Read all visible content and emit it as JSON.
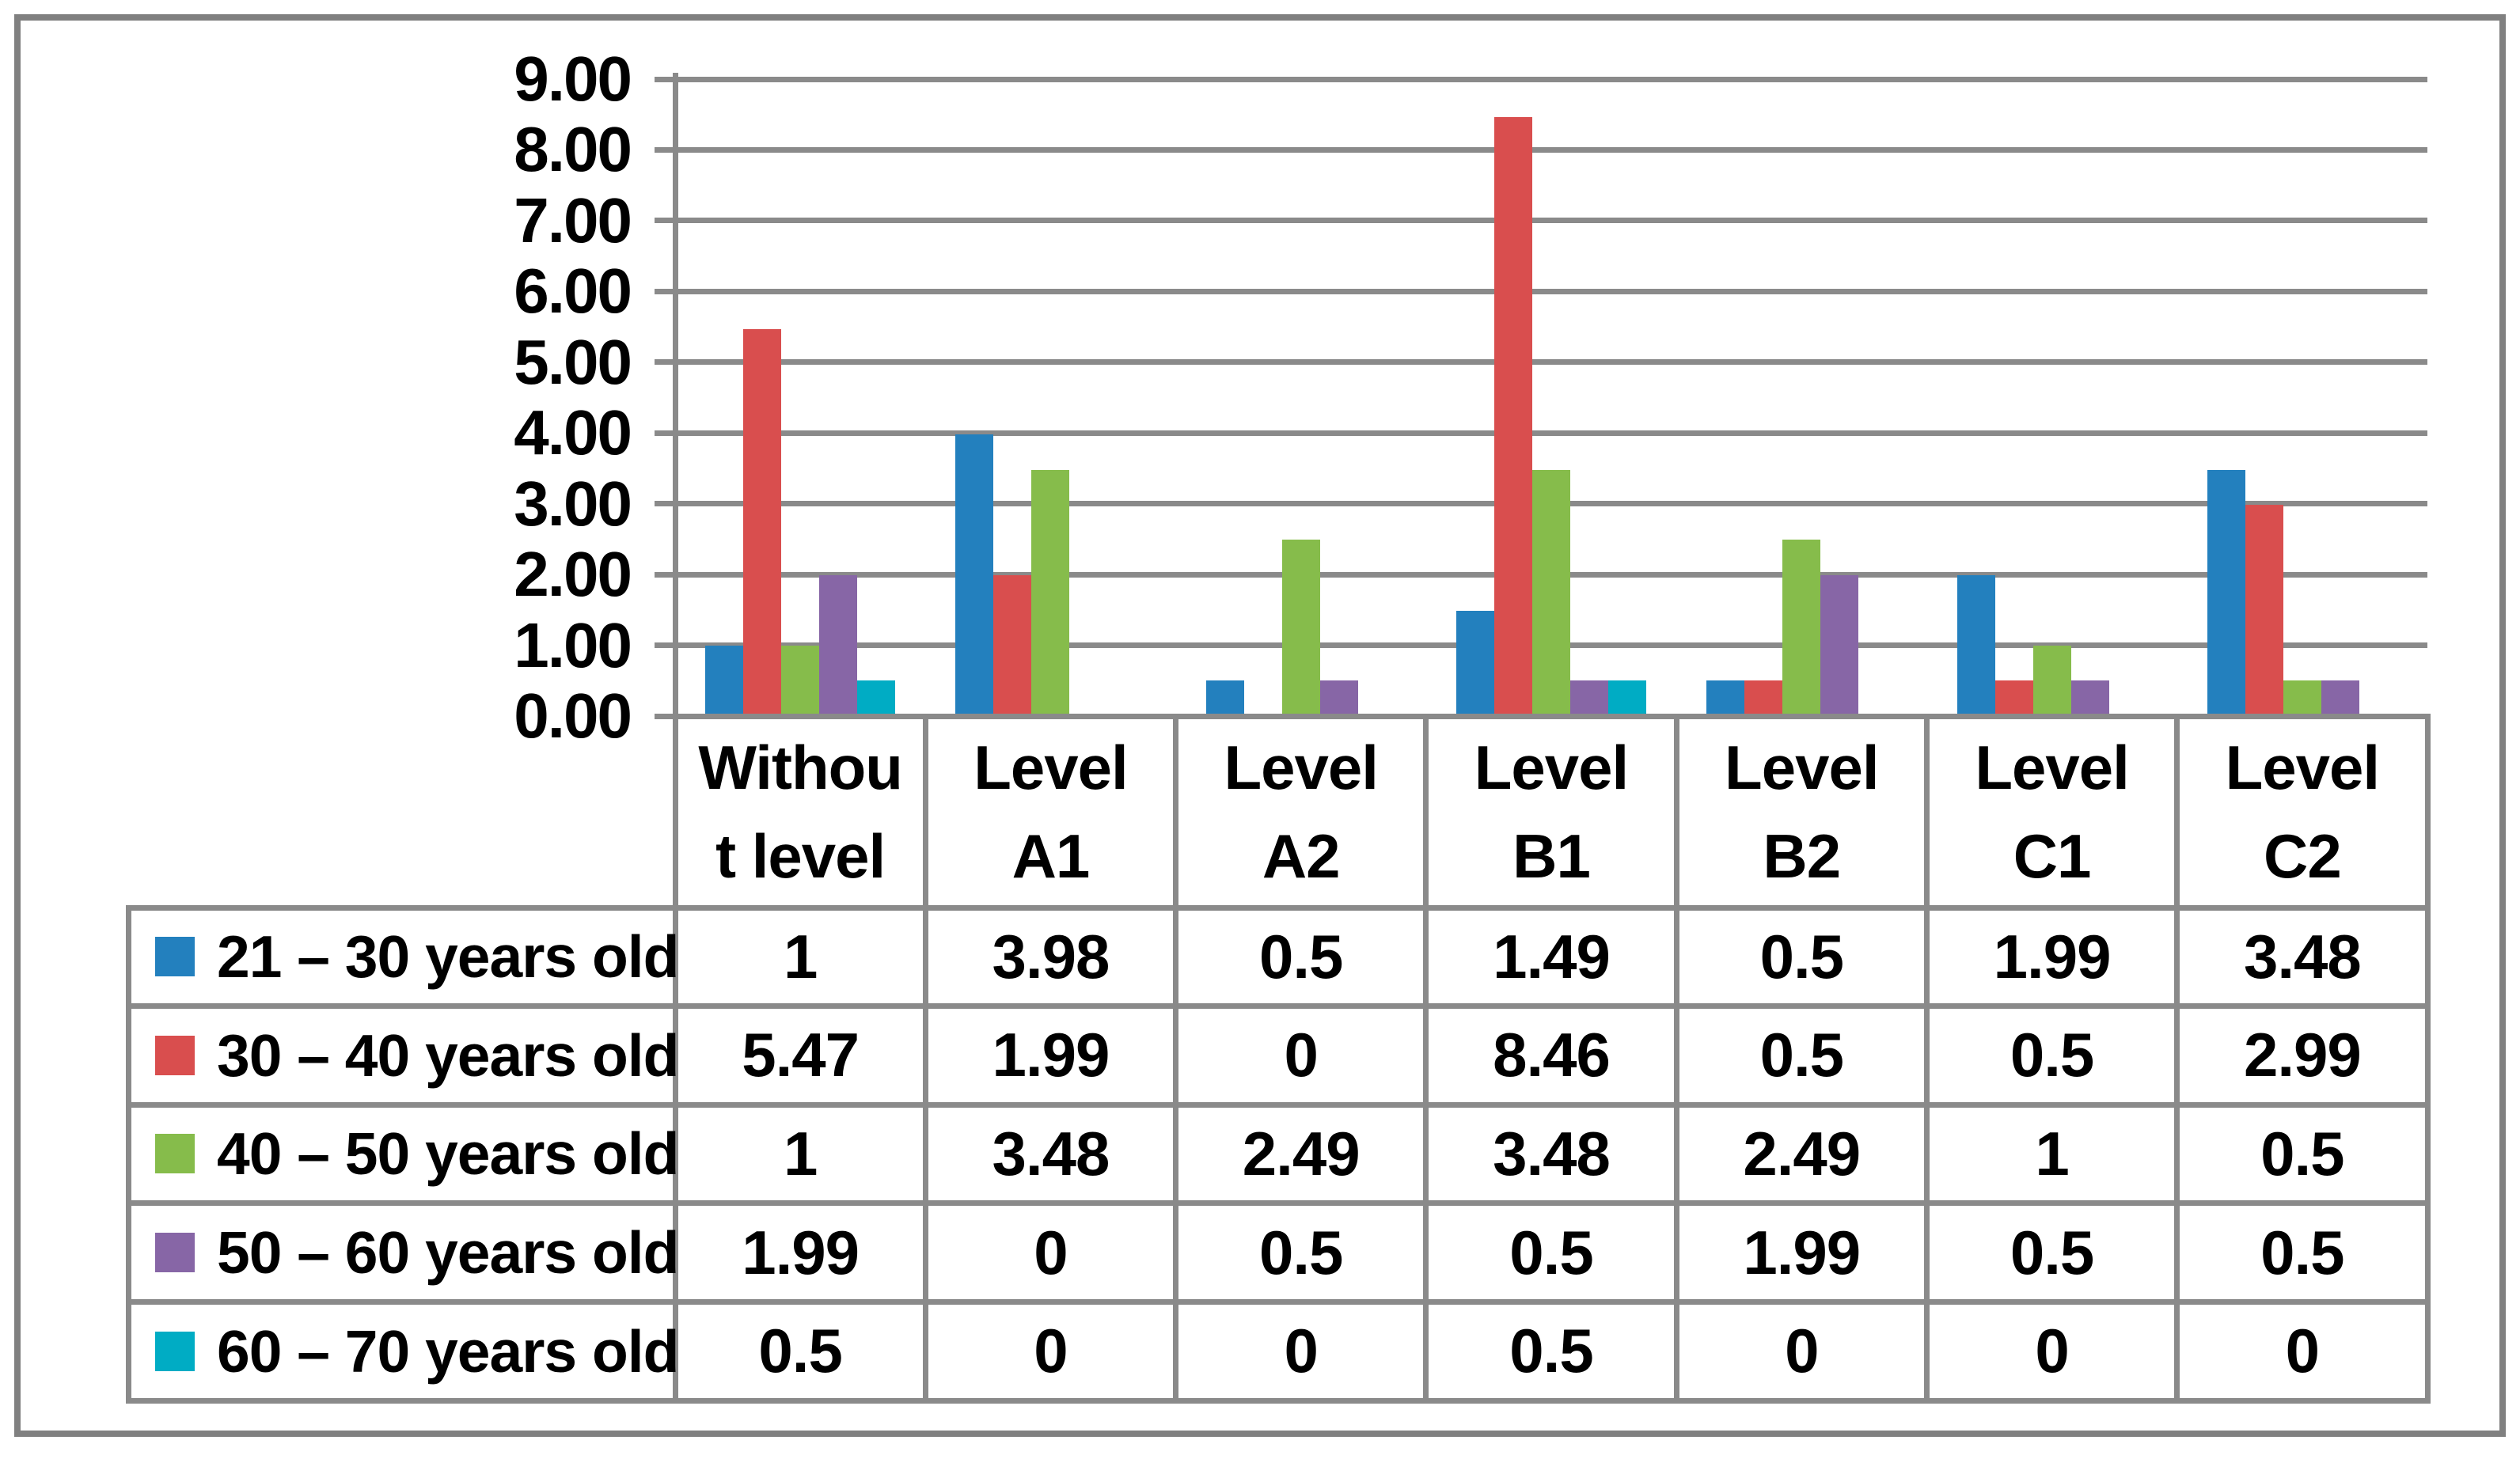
{
  "figure": {
    "background_color": "#FFFFFF",
    "frame_color": "#808080",
    "grid_color": "#8A8A8A",
    "text_color": "#000000"
  },
  "chart_data": {
    "type": "bar",
    "title": "",
    "xlabel": "",
    "ylabel": "",
    "categories": [
      "Without level",
      "Level A1",
      "Level A2",
      "Level B1",
      "Level B2",
      "Level C1",
      "Level C2"
    ],
    "categories_display": [
      "Withou\nt level",
      "Level\nA1",
      "Level\nA2",
      "Level\nB1",
      "Level\nB2",
      "Level\nC1",
      "Level\nC2"
    ],
    "series": [
      {
        "name": "21 – 30 years old",
        "color": "#2380BE",
        "values": [
          1,
          3.98,
          0.5,
          1.49,
          0.5,
          1.99,
          3.48
        ]
      },
      {
        "name": "30 – 40 years old",
        "color": "#D94E4E",
        "values": [
          5.47,
          1.99,
          0,
          8.46,
          0.5,
          0.5,
          2.99
        ]
      },
      {
        "name": "40 – 50 years old",
        "color": "#86BC4B",
        "values": [
          1,
          3.48,
          2.49,
          3.48,
          2.49,
          1,
          0.5
        ]
      },
      {
        "name": "50 – 60 years old",
        "color": "#8766A6",
        "values": [
          1.99,
          0,
          0.5,
          0.5,
          1.99,
          0.5,
          0.5
        ]
      },
      {
        "name": "60 – 70 years old",
        "color": "#00ACC4",
        "values": [
          0.5,
          0,
          0,
          0.5,
          0,
          0,
          0
        ]
      }
    ],
    "ylim": [
      0,
      9
    ],
    "ytick_step": 1,
    "ytick_labels": [
      "9.00",
      "8.00",
      "7.00",
      "6.00",
      "5.00",
      "4.00",
      "3.00",
      "2.00",
      "1.00",
      "0.00"
    ],
    "grid": true,
    "legend_position": "data-table-left-column",
    "data_table_shown": true
  }
}
